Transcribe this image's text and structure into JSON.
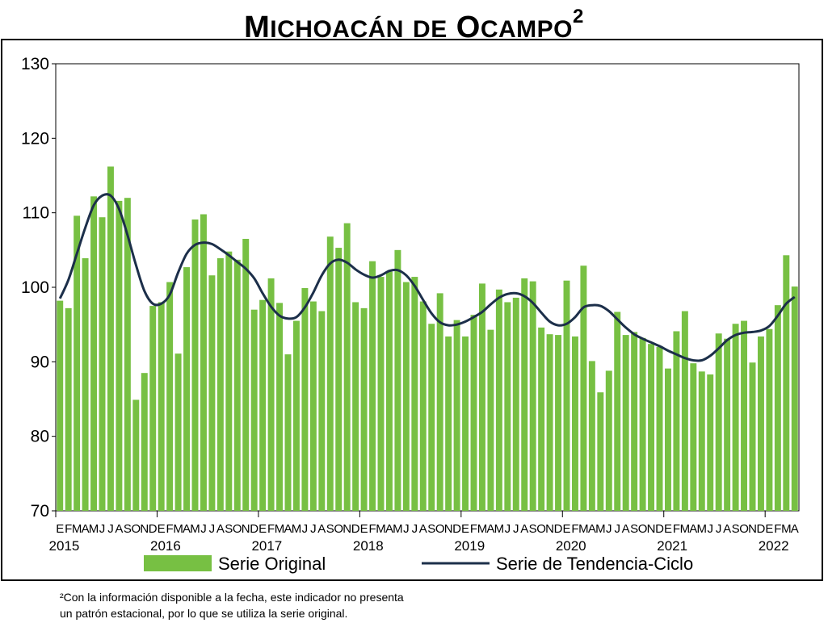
{
  "title": {
    "main": "Michoacán de Ocampo",
    "superscript": "2"
  },
  "chart_data": {
    "type": "bar",
    "ylim": [
      70,
      130
    ],
    "yticks": [
      "70",
      "80",
      "90",
      "100",
      "110",
      "120",
      "130"
    ],
    "month_labels": [
      "E",
      "F",
      "M",
      "A",
      "M",
      "J",
      "J",
      "A",
      "S",
      "O",
      "N",
      "D",
      "E",
      "F",
      "M",
      "A",
      "M",
      "J",
      "J",
      "A",
      "S",
      "O",
      "N",
      "D",
      "E",
      "F",
      "M",
      "A",
      "M",
      "J",
      "J",
      "A",
      "S",
      "O",
      "N",
      "D",
      "E",
      "F",
      "M",
      "A",
      "M",
      "J",
      "J",
      "A",
      "S",
      "O",
      "N",
      "D",
      "E",
      "F",
      "M",
      "A",
      "M",
      "J",
      "J",
      "A",
      "S",
      "O",
      "N",
      "D",
      "E",
      "F",
      "M",
      "A",
      "M",
      "J",
      "J",
      "A",
      "S",
      "O",
      "N",
      "D",
      "E",
      "F",
      "M",
      "A",
      "M",
      "J",
      "J",
      "A",
      "S",
      "O",
      "N",
      "D",
      "E",
      "F",
      "M",
      "A"
    ],
    "year_labels": [
      {
        "year": "2015",
        "index": 0
      },
      {
        "year": "2016",
        "index": 12
      },
      {
        "year": "2017",
        "index": 24
      },
      {
        "year": "2018",
        "index": 36
      },
      {
        "year": "2019",
        "index": 48
      },
      {
        "year": "2020",
        "index": 60
      },
      {
        "year": "2021",
        "index": 72
      },
      {
        "year": "2022",
        "index": 84
      }
    ],
    "series": [
      {
        "name": "Serie Original",
        "kind": "bar",
        "color": "#77c043",
        "values": [
          98.2,
          97.2,
          109.6,
          103.9,
          112.2,
          109.4,
          116.2,
          111.6,
          112.0,
          84.9,
          88.5,
          97.5,
          98.0,
          100.7,
          91.1,
          102.7,
          109.1,
          109.8,
          101.6,
          103.9,
          104.8,
          103.7,
          106.5,
          97.0,
          98.3,
          101.2,
          97.9,
          91.0,
          95.5,
          99.9,
          98.1,
          96.8,
          106.8,
          105.3,
          108.6,
          98.0,
          97.2,
          103.5,
          101.4,
          102.1,
          105.0,
          100.7,
          101.4,
          98.1,
          95.1,
          99.2,
          93.4,
          95.6,
          93.4,
          96.3,
          100.5,
          94.3,
          99.7,
          98.0,
          98.6,
          101.2,
          100.8,
          94.6,
          93.7,
          93.6,
          100.9,
          93.4,
          102.9,
          90.1,
          85.9,
          88.8,
          96.7,
          93.6,
          94.0,
          93.2,
          92.4,
          92.0,
          89.1,
          94.1,
          96.8,
          89.8,
          88.7,
          88.3,
          93.8,
          93.1,
          95.1,
          95.5,
          89.9,
          93.4,
          94.4,
          97.6,
          104.3,
          100.1
        ]
      },
      {
        "name": "Serie de Tendencia-Ciclo",
        "kind": "line",
        "color": "#1c2f4a",
        "values": [
          98.5,
          101.0,
          104.5,
          108.0,
          111.0,
          112.3,
          112.3,
          110.5,
          107.0,
          103.0,
          99.5,
          97.8,
          97.8,
          99.0,
          102.0,
          104.5,
          105.7,
          106.0,
          105.8,
          105.1,
          104.3,
          103.4,
          102.5,
          101.2,
          99.2,
          97.4,
          96.2,
          95.8,
          96.0,
          97.3,
          99.3,
          101.6,
          103.2,
          103.7,
          103.3,
          102.4,
          101.7,
          101.3,
          101.6,
          102.2,
          102.3,
          101.6,
          100.2,
          98.3,
          96.5,
          95.3,
          94.9,
          95.0,
          95.4,
          96.0,
          96.7,
          97.7,
          98.6,
          99.1,
          99.2,
          98.8,
          97.9,
          96.6,
          95.4,
          94.9,
          95.1,
          96.0,
          97.3,
          97.6,
          97.5,
          96.8,
          95.7,
          94.6,
          93.7,
          93.1,
          92.6,
          92.1,
          91.5,
          91.0,
          90.5,
          90.2,
          90.2,
          90.8,
          91.8,
          92.9,
          93.6,
          93.9,
          94.0,
          94.2,
          94.8,
          96.2,
          97.8,
          98.7
        ]
      }
    ],
    "legend": {
      "placement": "bottom"
    }
  },
  "footnote": {
    "line1": "²Con la información disponible a la fecha, este indicador no presenta",
    "line2": "un patrón estacional, por lo que se utiliza la serie original."
  }
}
